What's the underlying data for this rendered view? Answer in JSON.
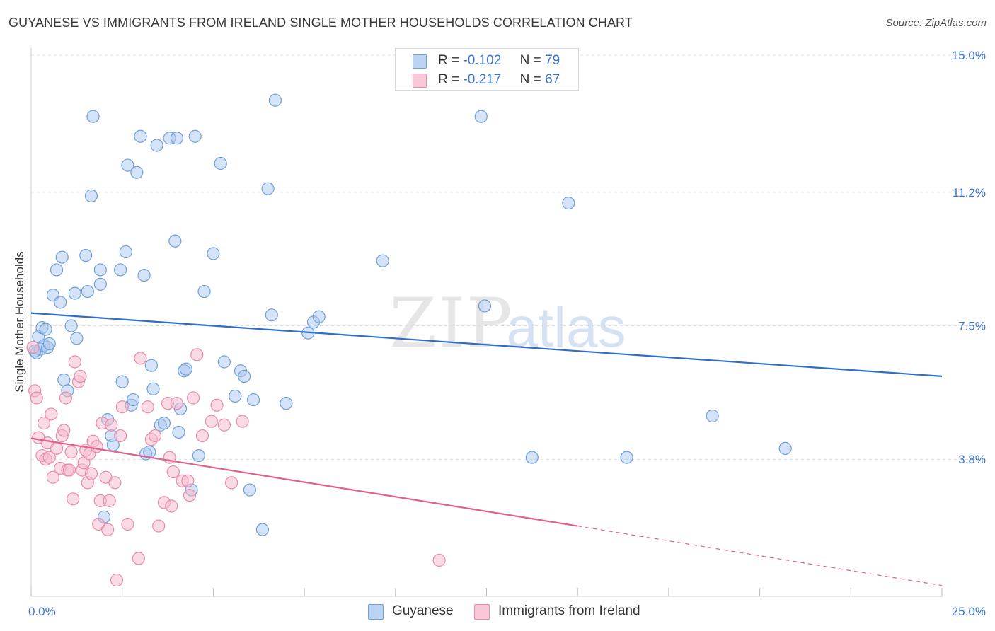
{
  "header": {
    "title": "GUYANESE VS IMMIGRANTS FROM IRELAND SINGLE MOTHER HOUSEHOLDS CORRELATION CHART",
    "source": "Source: ZipAtlas.com"
  },
  "watermark": {
    "zip": "ZIP",
    "atlas": "atlas"
  },
  "legend_top": {
    "rows": [
      {
        "r_label": "R =",
        "r_value": "-0.102",
        "n_label": "N =",
        "n_value": "79"
      },
      {
        "r_label": "R =",
        "r_value": "-0.217",
        "n_label": "N =",
        "n_value": "67"
      }
    ]
  },
  "legend_bottom": {
    "series_a": "Guyanese",
    "series_b": "Immigrants from Ireland"
  },
  "colors": {
    "blue_fill": "#aac8f0",
    "blue_stroke": "#6f9fd8",
    "blue_line": "#2f6ccc",
    "pink_fill": "#f5b8cc",
    "pink_stroke": "#e88aaa",
    "pink_line": "#e0608e",
    "axis_text": "#3b74d0",
    "grid": "#dddddd"
  },
  "chart_data": {
    "type": "scatter",
    "title": "GUYANESE VS IMMIGRANTS FROM IRELAND SINGLE MOTHER HOUSEHOLDS CORRELATION CHART",
    "xlabel": "",
    "ylabel": "Single Mother Households",
    "xlim": [
      0,
      25
    ],
    "ylim": [
      0,
      15.0
    ],
    "x_tick_labels": [
      {
        "value": 0,
        "label": "0.0%"
      },
      {
        "value": 25,
        "label": "25.0%"
      }
    ],
    "y_tick_labels": [
      {
        "value": 3.8,
        "label": "3.8%"
      },
      {
        "value": 7.5,
        "label": "7.5%"
      },
      {
        "value": 11.2,
        "label": "11.2%"
      },
      {
        "value": 15.0,
        "label": "15.0%"
      }
    ],
    "series": [
      {
        "name": "Guyanese",
        "r": -0.102,
        "n": 79,
        "trend": {
          "x0": 0,
          "y0": 7.85,
          "x1": 25,
          "y1": 6.1
        },
        "points": [
          [
            0.15,
            6.75
          ],
          [
            0.2,
            7.2
          ],
          [
            0.25,
            6.85
          ],
          [
            0.3,
            7.45
          ],
          [
            0.35,
            6.95
          ],
          [
            0.4,
            7.4
          ],
          [
            0.45,
            6.9
          ],
          [
            0.5,
            7.0
          ],
          [
            0.6,
            8.35
          ],
          [
            0.7,
            9.05
          ],
          [
            0.8,
            8.15
          ],
          [
            0.85,
            9.4
          ],
          [
            0.9,
            6.0
          ],
          [
            1.0,
            5.7
          ],
          [
            1.1,
            7.5
          ],
          [
            1.2,
            8.4
          ],
          [
            1.25,
            7.15
          ],
          [
            1.5,
            9.45
          ],
          [
            1.55,
            8.45
          ],
          [
            1.65,
            11.1
          ],
          [
            1.7,
            13.3
          ],
          [
            1.9,
            8.65
          ],
          [
            1.9,
            9.05
          ],
          [
            2.0,
            2.2
          ],
          [
            2.1,
            4.9
          ],
          [
            2.2,
            4.45
          ],
          [
            2.25,
            4.2
          ],
          [
            2.45,
            9.05
          ],
          [
            2.5,
            5.95
          ],
          [
            2.6,
            9.55
          ],
          [
            2.65,
            11.95
          ],
          [
            2.75,
            5.3
          ],
          [
            2.8,
            5.45
          ],
          [
            2.9,
            11.75
          ],
          [
            3.0,
            12.75
          ],
          [
            3.1,
            8.9
          ],
          [
            3.15,
            3.95
          ],
          [
            3.25,
            4.0
          ],
          [
            3.3,
            6.4
          ],
          [
            3.35,
            5.75
          ],
          [
            3.45,
            12.5
          ],
          [
            3.55,
            4.75
          ],
          [
            3.65,
            4.8
          ],
          [
            3.8,
            12.7
          ],
          [
            3.95,
            9.85
          ],
          [
            4.0,
            12.7
          ],
          [
            4.05,
            4.55
          ],
          [
            4.1,
            5.2
          ],
          [
            4.2,
            6.25
          ],
          [
            4.25,
            6.3
          ],
          [
            4.4,
            2.95
          ],
          [
            4.5,
            12.75
          ],
          [
            4.6,
            3.9
          ],
          [
            4.75,
            8.45
          ],
          [
            5.0,
            9.5
          ],
          [
            5.2,
            12.0
          ],
          [
            5.3,
            6.5
          ],
          [
            5.6,
            5.55
          ],
          [
            5.75,
            6.25
          ],
          [
            5.85,
            6.1
          ],
          [
            6.0,
            2.95
          ],
          [
            6.1,
            5.45
          ],
          [
            6.35,
            1.85
          ],
          [
            6.5,
            11.3
          ],
          [
            6.6,
            7.8
          ],
          [
            6.7,
            13.75
          ],
          [
            7.0,
            5.35
          ],
          [
            7.6,
            7.3
          ],
          [
            7.75,
            7.6
          ],
          [
            7.9,
            7.75
          ],
          [
            9.65,
            9.3
          ],
          [
            12.35,
            13.3
          ],
          [
            12.45,
            8.05
          ],
          [
            13.75,
            3.85
          ],
          [
            14.75,
            10.9
          ],
          [
            16.35,
            3.85
          ],
          [
            18.7,
            5.0
          ],
          [
            20.7,
            4.1
          ],
          [
            0.1,
            6.8
          ]
        ]
      },
      {
        "name": "Immigrants from Ireland",
        "r": -0.217,
        "n": 67,
        "trend": {
          "x0": 0,
          "y0": 4.38,
          "x1": 15,
          "y1": 1.95,
          "dashed_to": {
            "x": 25,
            "y": 0.3
          }
        },
        "points": [
          [
            0.05,
            6.9
          ],
          [
            0.1,
            5.7
          ],
          [
            0.15,
            5.5
          ],
          [
            0.2,
            4.4
          ],
          [
            0.3,
            3.9
          ],
          [
            0.35,
            4.8
          ],
          [
            0.4,
            3.8
          ],
          [
            0.45,
            4.25
          ],
          [
            0.5,
            3.85
          ],
          [
            0.55,
            5.05
          ],
          [
            0.6,
            3.3
          ],
          [
            0.7,
            4.1
          ],
          [
            0.8,
            3.55
          ],
          [
            0.85,
            4.45
          ],
          [
            0.9,
            4.6
          ],
          [
            0.95,
            5.5
          ],
          [
            1.0,
            3.5
          ],
          [
            1.05,
            3.5
          ],
          [
            1.1,
            4.0
          ],
          [
            1.15,
            2.7
          ],
          [
            1.2,
            6.5
          ],
          [
            1.3,
            5.95
          ],
          [
            1.35,
            6.1
          ],
          [
            1.4,
            3.5
          ],
          [
            1.45,
            3.7
          ],
          [
            1.5,
            4.05
          ],
          [
            1.55,
            3.15
          ],
          [
            1.6,
            3.95
          ],
          [
            1.65,
            3.4
          ],
          [
            1.7,
            4.3
          ],
          [
            1.8,
            4.15
          ],
          [
            1.85,
            2.0
          ],
          [
            1.9,
            2.65
          ],
          [
            1.95,
            4.8
          ],
          [
            2.05,
            3.3
          ],
          [
            2.1,
            1.85
          ],
          [
            2.15,
            2.65
          ],
          [
            2.2,
            4.75
          ],
          [
            2.3,
            3.15
          ],
          [
            2.35,
            0.45
          ],
          [
            2.45,
            4.45
          ],
          [
            2.5,
            5.25
          ],
          [
            2.65,
            2.0
          ],
          [
            2.95,
            1.05
          ],
          [
            3.0,
            6.6
          ],
          [
            3.2,
            5.25
          ],
          [
            3.3,
            4.35
          ],
          [
            3.4,
            4.45
          ],
          [
            3.5,
            1.95
          ],
          [
            3.65,
            2.6
          ],
          [
            3.75,
            5.35
          ],
          [
            3.85,
            2.5
          ],
          [
            3.9,
            3.45
          ],
          [
            4.0,
            5.35
          ],
          [
            4.15,
            3.2
          ],
          [
            4.3,
            3.2
          ],
          [
            4.35,
            2.8
          ],
          [
            4.45,
            5.5
          ],
          [
            4.55,
            6.7
          ],
          [
            4.7,
            4.45
          ],
          [
            4.95,
            4.85
          ],
          [
            5.1,
            5.3
          ],
          [
            5.3,
            4.75
          ],
          [
            5.5,
            3.15
          ],
          [
            5.8,
            4.85
          ],
          [
            11.2,
            1.0
          ],
          [
            3.8,
            3.85
          ]
        ]
      }
    ]
  }
}
